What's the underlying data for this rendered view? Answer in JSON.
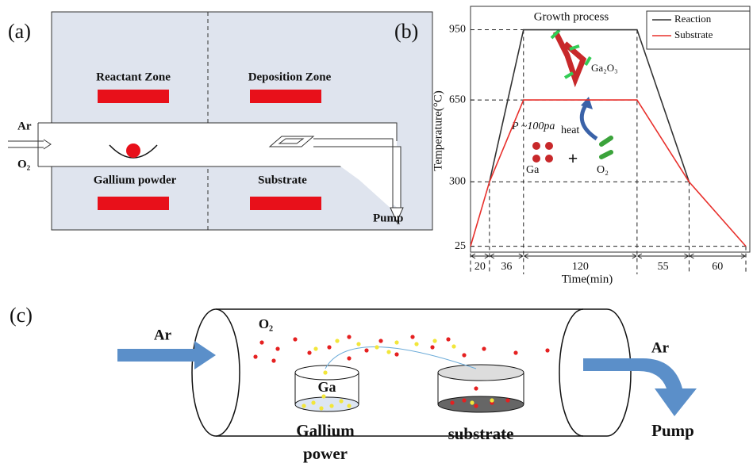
{
  "panel_a": {
    "label": "(a)",
    "zones": [
      "Reactant Zone",
      "Deposition Zone",
      "Gallium powder",
      "Substrate"
    ],
    "gases": [
      "Ar",
      "O₂"
    ],
    "outlet": "Pump"
  },
  "chart_data": {
    "type": "line",
    "label": "(b)",
    "title": "Growth process",
    "x_label": "Time(min)",
    "y_label": "Temperature(°C)",
    "x": [
      0,
      20,
      56,
      176,
      231,
      291
    ],
    "xlim": [
      0,
      291
    ],
    "durations": [
      20,
      36,
      120,
      55,
      60
    ],
    "ylim": [
      0,
      1050
    ],
    "yticks": [
      25,
      300,
      650,
      950
    ],
    "series": [
      {
        "name": "Reaction",
        "color": "#333333",
        "values": [
          null,
          300,
          950,
          950,
          300,
          null
        ]
      },
      {
        "name": "Substrate",
        "color": "#e8302c",
        "values": [
          25,
          300,
          650,
          650,
          300,
          25
        ]
      }
    ],
    "legend": "upper right",
    "annotations": [
      "Ga₂O₃",
      "heat",
      "P ~100pa",
      "Ga",
      "+",
      "O₂"
    ]
  },
  "panel_c": {
    "label": "(c)",
    "inlet_gas": "Ar",
    "oxygen": "O₂",
    "source": "Ga",
    "source_caption": [
      "Gallium",
      "power"
    ],
    "substrate": "substrate",
    "outlet_gas": "Ar",
    "outlet": "Pump"
  }
}
